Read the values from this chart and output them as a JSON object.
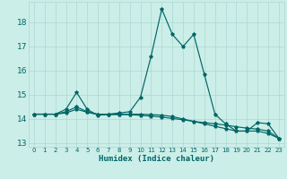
{
  "xlabel": "Humidex (Indice chaleur)",
  "background_color": "#cceee8",
  "grid_color": "#aad8d0",
  "line_color": "#006666",
  "spine_color": "#aad8d0",
  "x": [
    0,
    1,
    2,
    3,
    4,
    5,
    6,
    7,
    8,
    9,
    10,
    11,
    12,
    13,
    14,
    15,
    16,
    17,
    18,
    19,
    20,
    21,
    22,
    23
  ],
  "line1": [
    14.2,
    14.2,
    14.2,
    14.4,
    15.1,
    14.4,
    14.15,
    14.2,
    14.25,
    14.3,
    14.9,
    16.6,
    18.55,
    17.5,
    17.0,
    17.5,
    15.85,
    14.2,
    13.8,
    13.5,
    13.5,
    13.85,
    13.8,
    13.2
  ],
  "line2": [
    14.2,
    14.2,
    14.2,
    14.3,
    14.5,
    14.3,
    14.2,
    14.2,
    14.2,
    14.2,
    14.2,
    14.18,
    14.16,
    14.1,
    14.0,
    13.9,
    13.8,
    13.7,
    13.6,
    13.5,
    13.5,
    13.5,
    13.4,
    13.2
  ],
  "line3": [
    14.2,
    14.2,
    14.2,
    14.25,
    14.4,
    14.28,
    14.18,
    14.18,
    14.18,
    14.18,
    14.15,
    14.12,
    14.08,
    14.02,
    13.97,
    13.9,
    13.85,
    13.8,
    13.75,
    13.68,
    13.62,
    13.58,
    13.5,
    13.2
  ],
  "ylim": [
    12.85,
    18.85
  ],
  "xlim": [
    -0.5,
    23.5
  ],
  "yticks": [
    13,
    14,
    15,
    16,
    17,
    18
  ],
  "xticks": [
    0,
    1,
    2,
    3,
    4,
    5,
    6,
    7,
    8,
    9,
    10,
    11,
    12,
    13,
    14,
    15,
    16,
    17,
    18,
    19,
    20,
    21,
    22,
    23
  ],
  "xlabel_fontsize": 6.5,
  "tick_fontsize": 6,
  "linewidth": 0.85,
  "markersize": 2.8
}
